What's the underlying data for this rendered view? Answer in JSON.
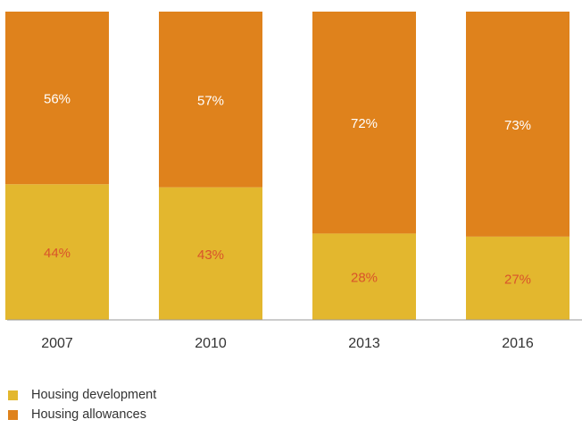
{
  "chart_data": {
    "type": "bar",
    "stacked": true,
    "percent": true,
    "categories": [
      "2007",
      "2010",
      "2013",
      "2016"
    ],
    "series": [
      {
        "name": "Housing development",
        "values": [
          44,
          43,
          28,
          27
        ],
        "labels": [
          "44%",
          "43%",
          "28%",
          "27%"
        ],
        "color": "#E3B72E",
        "label_color": "#D9532B"
      },
      {
        "name": "Housing allowances",
        "values": [
          56,
          57,
          72,
          73
        ],
        "labels": [
          "56%",
          "57%",
          "72%",
          "73%"
        ],
        "color": "#DF821C",
        "label_color": "#ffffff"
      }
    ],
    "ylim": [
      0,
      100
    ],
    "grid": false,
    "legend_position": "bottom-left"
  }
}
